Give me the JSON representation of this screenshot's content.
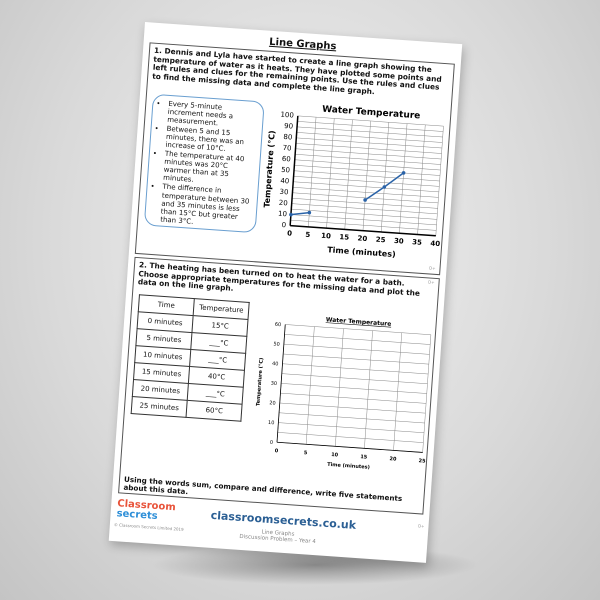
{
  "sheet": {
    "title": "Line Graphs"
  },
  "q1": {
    "text": "1. Dennis and Lyla have started to create a line graph showing the temperature of water as it heats. They have plotted some points and left rules and clues for the remaining points. Use the rules and clues to find the missing data and complete the line graph.",
    "clues": [
      "Every 5-minute increment needs a measurement.",
      "Between 5 and 15 minutes, there was an increase of 10°C.",
      "The temperature at 40 minutes was 20°C warmer than at 35 minutes.",
      "The difference in temperature between 30 and 35 minutes is less than 15°C but greater than 3°C."
    ],
    "code": "D+"
  },
  "q2": {
    "text": "2. The heating has been turned on to heat the water for a bath. Choose appropriate temperatures for the missing data and plot the data on the line graph.",
    "table": {
      "headers": [
        "Time",
        "Temperature"
      ],
      "rows": [
        [
          "0 minutes",
          "15°C"
        ],
        [
          "5 minutes",
          "___°C"
        ],
        [
          "10 minutes",
          "___°C"
        ],
        [
          "15 minutes",
          "40°C"
        ],
        [
          "20 minutes",
          "___°C"
        ],
        [
          "25 minutes",
          "60°C"
        ]
      ]
    },
    "final": "Using the words sum, compare and difference, write five statements about this data.",
    "code": "D+"
  },
  "footer": {
    "logo_line1": "Classroom",
    "logo_line2": "secrets",
    "copyright": "© Classroom Secrets Limited 2019",
    "url": "classroomsecrets.co.uk",
    "line1": "Line Graphs",
    "line2": "Discussion Problem – Year 4",
    "code": "D+"
  },
  "colors": {
    "line": "#2a63a8",
    "url": "#2b5f94",
    "clue_border": "#6a9fd0"
  },
  "chart_data": [
    {
      "type": "line",
      "title": "Water Temperature",
      "xlabel": "Time (minutes)",
      "ylabel": "Temperature (°C)",
      "xlim": [
        0,
        40
      ],
      "ylim": [
        0,
        100
      ],
      "xticks": [
        0,
        5,
        10,
        15,
        20,
        25,
        30,
        35,
        40
      ],
      "yticks": [
        0,
        10,
        20,
        30,
        40,
        50,
        60,
        70,
        80,
        90,
        100
      ],
      "grid": true,
      "segments": [
        [
          [
            0,
            10
          ],
          [
            5,
            13
          ]
        ],
        [
          [
            20,
            28
          ],
          [
            25,
            41
          ],
          [
            30,
            55
          ]
        ]
      ]
    },
    {
      "type": "line",
      "title": "Water Temperature",
      "xlabel": "Time (minutes)",
      "ylabel": "Temperature (°C)",
      "xlim": [
        0,
        25
      ],
      "ylim": [
        0,
        60
      ],
      "xticks": [
        0,
        5,
        10,
        15,
        20,
        25
      ],
      "yticks": [
        0,
        10,
        20,
        30,
        40,
        50,
        60
      ],
      "grid": true,
      "segments": []
    }
  ]
}
